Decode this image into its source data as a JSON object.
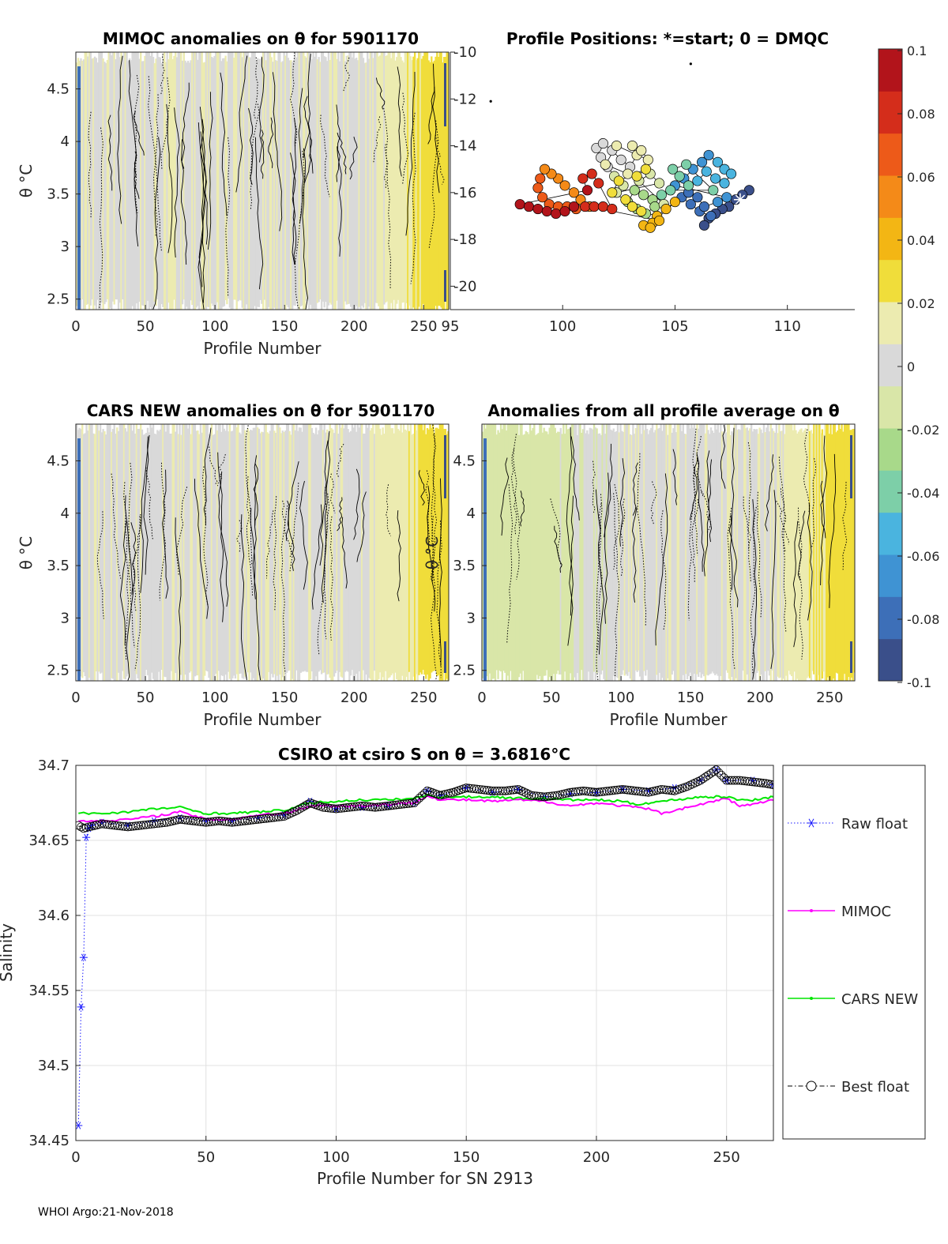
{
  "footer": "WHOI Argo:21-Nov-2018",
  "panels": {
    "mimoc": {
      "title": "MIMOC anomalies on θ  for 5901170",
      "xlabel": "Profile Number",
      "ylabel": "θ °C"
    },
    "positions": {
      "title": "Profile Positions: *=start; 0 = DMQC"
    },
    "cars": {
      "title": "CARS NEW anomalies on θ for 5901170",
      "xlabel": "Profile Number",
      "ylabel": "θ °C"
    },
    "average": {
      "title": "Anomalies from all profile average on θ",
      "xlabel": "Profile Number",
      "ylabel": "θ °C"
    },
    "salinity": {
      "title": "CSIRO at csiro S on θ = 3.6816°C",
      "xlabel": "Profile Number for SN 2913",
      "ylabel": "Salinity"
    }
  },
  "colorbar": {
    "ticks": [
      "0.1",
      "0.08",
      "0.06",
      "0.04",
      "0.02",
      "0",
      "-0.02",
      "-0.04",
      "-0.06",
      "-0.08",
      "-0.1"
    ],
    "colors": [
      "#3a4f8a",
      "#3d6fb8",
      "#3f93d3",
      "#4ab4df",
      "#7dcfa8",
      "#a8d98a",
      "#d9e6a8",
      "#d9d9d9",
      "#ecebb0",
      "#f0dd3a",
      "#f3b614",
      "#f48a18",
      "#ed5a19",
      "#d42d1b",
      "#b2141b"
    ]
  },
  "chart_data": [
    {
      "type": "heatmap",
      "name": "MIMOC anomalies",
      "x_ticks": [
        "0",
        "50",
        "100",
        "150",
        "200",
        "250"
      ],
      "y_ticks": [
        "2.5",
        "3",
        "3.5",
        "4",
        "4.5"
      ],
      "xlim": [
        0,
        268
      ],
      "ylim": [
        2.4,
        4.85
      ],
      "clim": [
        -0.1,
        0.1
      ],
      "anomaly_range": [
        -0.01,
        0.03
      ]
    },
    {
      "type": "scatter",
      "name": "Profile positions",
      "x_ticks": [
        "95",
        "100",
        "105",
        "110"
      ],
      "y_ticks": [
        "-10",
        "-12",
        "-14",
        "-16",
        "-18",
        "-20"
      ],
      "xlim": [
        95,
        113
      ],
      "ylim": [
        -21,
        -10
      ],
      "points": [
        [
          108.3,
          -15.9
        ],
        [
          108.0,
          -16.1
        ],
        [
          107.7,
          -16.3
        ],
        [
          107.4,
          -16.6
        ],
        [
          107.1,
          -16.7
        ],
        [
          106.8,
          -16.9
        ],
        [
          106.5,
          -17.1
        ],
        [
          106.3,
          -17.4
        ],
        [
          106.6,
          -17.0
        ],
        [
          106.1,
          -16.8
        ],
        [
          105.7,
          -16.5
        ],
        [
          105.3,
          -16.2
        ],
        [
          105.6,
          -16.0
        ],
        [
          106.0,
          -16.2
        ],
        [
          106.3,
          -16.6
        ],
        [
          106.9,
          -16.4
        ],
        [
          107.3,
          -16.2
        ],
        [
          105.0,
          -15.7
        ],
        [
          105.4,
          -15.4
        ],
        [
          105.8,
          -15.0
        ],
        [
          106.2,
          -14.7
        ],
        [
          106.5,
          -14.4
        ],
        [
          106.9,
          -14.7
        ],
        [
          107.2,
          -15.0
        ],
        [
          107.5,
          -15.2
        ],
        [
          107.2,
          -15.6
        ],
        [
          106.8,
          -15.4
        ],
        [
          106.4,
          -15.1
        ],
        [
          106.0,
          -15.5
        ],
        [
          105.6,
          -15.7
        ],
        [
          105.2,
          -15.3
        ],
        [
          104.9,
          -15.0
        ],
        [
          105.5,
          -14.8
        ],
        [
          106.7,
          -15.9
        ],
        [
          104.8,
          -15.9
        ],
        [
          104.4,
          -16.1
        ],
        [
          104.0,
          -16.3
        ],
        [
          103.6,
          -16.1
        ],
        [
          103.2,
          -15.9
        ],
        [
          102.9,
          -16.4
        ],
        [
          103.3,
          -16.7
        ],
        [
          103.7,
          -16.9
        ],
        [
          104.1,
          -16.6
        ],
        [
          104.5,
          -16.5
        ],
        [
          103.4,
          -15.5
        ],
        [
          103.9,
          -15.2
        ],
        [
          104.3,
          -15.6
        ],
        [
          102.4,
          -16.0
        ],
        [
          102.7,
          -15.7
        ],
        [
          102.3,
          -15.3
        ],
        [
          102.0,
          -14.9
        ],
        [
          101.7,
          -14.5
        ],
        [
          101.5,
          -14.1
        ],
        [
          101.8,
          -13.9
        ],
        [
          102.2,
          -14.2
        ],
        [
          102.6,
          -14.6
        ],
        [
          103.0,
          -14.9
        ],
        [
          103.3,
          -14.4
        ],
        [
          103.1,
          -14.0
        ],
        [
          103.5,
          -14.2
        ],
        [
          103.8,
          -14.6
        ],
        [
          102.4,
          -14.0
        ],
        [
          101.9,
          -14.8
        ],
        [
          102.9,
          -15.2
        ],
        [
          103.3,
          -15.3
        ],
        [
          103.7,
          -15.0
        ],
        [
          102.5,
          -15.5
        ],
        [
          102.2,
          -16.0
        ],
        [
          102.8,
          -16.3
        ],
        [
          103.1,
          -16.6
        ],
        [
          103.5,
          -16.8
        ],
        [
          104.2,
          -17.0
        ],
        [
          104.6,
          -16.7
        ],
        [
          105.0,
          -16.4
        ],
        [
          104.0,
          -17.3
        ],
        [
          103.6,
          -17.4
        ],
        [
          103.9,
          -17.5
        ],
        [
          104.3,
          -17.2
        ],
        [
          101.2,
          -16.6
        ],
        [
          100.8,
          -16.3
        ],
        [
          100.5,
          -16.0
        ],
        [
          100.1,
          -15.7
        ],
        [
          99.8,
          -15.4
        ],
        [
          99.5,
          -15.2
        ],
        [
          99.2,
          -15.0
        ],
        [
          99.0,
          -15.4
        ],
        [
          98.9,
          -15.8
        ],
        [
          99.1,
          -16.2
        ],
        [
          99.4,
          -16.5
        ],
        [
          99.8,
          -16.6
        ],
        [
          100.2,
          -16.6
        ],
        [
          100.6,
          -16.7
        ],
        [
          101.0,
          -16.6
        ],
        [
          101.4,
          -16.6
        ],
        [
          101.8,
          -16.6
        ],
        [
          102.2,
          -16.7
        ],
        [
          101.6,
          -15.6
        ],
        [
          101.3,
          -15.2
        ],
        [
          100.9,
          -15.4
        ],
        [
          101.1,
          -15.9
        ],
        [
          98.1,
          -16.5
        ],
        [
          98.5,
          -16.6
        ],
        [
          98.9,
          -16.7
        ],
        [
          99.3,
          -16.8
        ],
        [
          99.7,
          -16.9
        ],
        [
          100.1,
          -16.8
        ],
        [
          100.5,
          -16.6
        ]
      ],
      "start": [
        107.9,
        -16.3
      ],
      "isolated_points": [
        [
          105.7,
          -10.5
        ],
        [
          96.8,
          -12.1
        ]
      ]
    },
    {
      "type": "heatmap",
      "name": "CARS NEW anomalies",
      "x_ticks": [
        "0",
        "50",
        "100",
        "150",
        "200",
        "250"
      ],
      "y_ticks": [
        "2.5",
        "3",
        "3.5",
        "4",
        "4.5"
      ],
      "xlim": [
        0,
        268
      ],
      "ylim": [
        2.4,
        4.85
      ],
      "clim": [
        -0.1,
        0.1
      ],
      "anomaly_range": [
        -0.015,
        0.03
      ]
    },
    {
      "type": "heatmap",
      "name": "Anomalies from all profile average",
      "x_ticks": [
        "0",
        "50",
        "100",
        "150",
        "200",
        "250"
      ],
      "y_ticks": [
        "2.5",
        "3",
        "3.5",
        "4",
        "4.5"
      ],
      "xlim": [
        0,
        268
      ],
      "ylim": [
        2.4,
        4.85
      ],
      "clim": [
        -0.1,
        0.1
      ],
      "anomaly_range": [
        -0.02,
        0.03
      ]
    },
    {
      "type": "line",
      "name": "Salinity time series",
      "x_ticks": [
        "0",
        "50",
        "100",
        "150",
        "200",
        "250"
      ],
      "y_ticks": [
        "34.7",
        "34.65",
        "34.6",
        "34.55",
        "34.5",
        "34.45"
      ],
      "xlim": [
        0,
        268
      ],
      "ylim": [
        34.45,
        34.7
      ],
      "grid": true,
      "legend_position": "right",
      "series": [
        {
          "name": "Raw float",
          "color": "#1a1aff",
          "style": "dotted-asterisk",
          "x": [
            1,
            2,
            3,
            4,
            5,
            6,
            10,
            20,
            30,
            40,
            50,
            60,
            70,
            80,
            90,
            100,
            110,
            120,
            130,
            135,
            140,
            150,
            160,
            170,
            180,
            190,
            200,
            210,
            220,
            230,
            240,
            246,
            250,
            260,
            268
          ],
          "y": [
            34.46,
            34.539,
            34.572,
            34.652,
            34.658,
            34.66,
            34.662,
            34.66,
            34.663,
            34.665,
            34.663,
            34.663,
            34.665,
            34.667,
            34.676,
            34.671,
            34.672,
            34.673,
            34.675,
            34.683,
            34.68,
            34.685,
            34.682,
            34.684,
            34.679,
            34.681,
            34.682,
            34.684,
            34.683,
            34.685,
            34.69,
            34.697,
            34.69,
            34.69,
            34.687
          ]
        },
        {
          "name": "MIMOC",
          "color": "#ff00ff",
          "style": "line-dot",
          "x": [
            1,
            10,
            20,
            30,
            40,
            50,
            60,
            70,
            80,
            90,
            100,
            110,
            120,
            130,
            135,
            140,
            150,
            160,
            170,
            180,
            190,
            200,
            210,
            220,
            225,
            230,
            240,
            250,
            255,
            260,
            268
          ],
          "y": [
            34.663,
            34.663,
            34.664,
            34.666,
            34.669,
            34.664,
            34.664,
            34.667,
            34.668,
            34.673,
            34.673,
            34.673,
            34.674,
            34.675,
            34.68,
            34.677,
            34.677,
            34.676,
            34.677,
            34.676,
            34.673,
            34.675,
            34.673,
            34.671,
            34.668,
            34.67,
            34.674,
            34.678,
            34.673,
            34.674,
            34.677
          ]
        },
        {
          "name": "CARS NEW",
          "color": "#00e600",
          "style": "line-dot",
          "x": [
            1,
            10,
            20,
            30,
            40,
            50,
            60,
            70,
            80,
            90,
            100,
            110,
            120,
            130,
            135,
            140,
            150,
            160,
            170,
            180,
            190,
            200,
            210,
            215,
            220,
            230,
            240,
            250,
            255,
            260,
            268
          ],
          "y": [
            34.668,
            34.668,
            34.669,
            34.671,
            34.672,
            34.668,
            34.668,
            34.669,
            34.67,
            34.675,
            34.676,
            34.677,
            34.677,
            34.678,
            34.68,
            34.679,
            34.679,
            34.679,
            34.678,
            34.678,
            34.677,
            34.677,
            34.676,
            34.674,
            34.675,
            34.677,
            34.679,
            34.679,
            34.677,
            34.677,
            34.679
          ]
        },
        {
          "name": "Best float",
          "color": "#000000",
          "style": "dashdot-circle",
          "x": [
            1,
            2,
            3,
            5,
            10,
            15,
            20,
            25,
            30,
            35,
            40,
            45,
            50,
            55,
            60,
            65,
            70,
            75,
            80,
            85,
            90,
            95,
            100,
            105,
            110,
            115,
            120,
            125,
            130,
            135,
            140,
            145,
            150,
            155,
            160,
            165,
            170,
            175,
            180,
            185,
            190,
            195,
            200,
            205,
            210,
            215,
            220,
            225,
            230,
            235,
            240,
            246,
            250,
            255,
            260,
            265,
            268
          ],
          "y": [
            34.66,
            34.659,
            34.658,
            34.659,
            34.661,
            34.66,
            34.659,
            34.66,
            34.661,
            34.662,
            34.664,
            34.663,
            34.662,
            34.663,
            34.662,
            34.663,
            34.664,
            34.665,
            34.666,
            34.67,
            34.675,
            34.672,
            34.671,
            34.672,
            34.673,
            34.672,
            34.673,
            34.674,
            34.675,
            34.683,
            34.68,
            34.682,
            34.685,
            34.684,
            34.683,
            34.683,
            34.684,
            34.68,
            34.679,
            34.68,
            34.682,
            34.683,
            34.682,
            34.683,
            34.684,
            34.683,
            34.682,
            34.684,
            34.683,
            34.686,
            34.69,
            34.697,
            34.69,
            34.69,
            34.689,
            34.688,
            34.687
          ]
        }
      ]
    }
  ]
}
